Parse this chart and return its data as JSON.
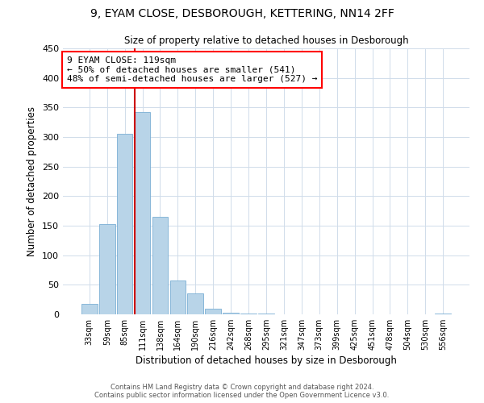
{
  "title": "9, EYAM CLOSE, DESBOROUGH, KETTERING, NN14 2FF",
  "subtitle": "Size of property relative to detached houses in Desborough",
  "xlabel": "Distribution of detached houses by size in Desborough",
  "ylabel": "Number of detached properties",
  "bar_labels": [
    "33sqm",
    "59sqm",
    "85sqm",
    "111sqm",
    "138sqm",
    "164sqm",
    "190sqm",
    "216sqm",
    "242sqm",
    "268sqm",
    "295sqm",
    "321sqm",
    "347sqm",
    "373sqm",
    "399sqm",
    "425sqm",
    "451sqm",
    "478sqm",
    "504sqm",
    "530sqm",
    "556sqm"
  ],
  "bar_heights": [
    18,
    153,
    305,
    342,
    165,
    57,
    35,
    9,
    3,
    1,
    1,
    0,
    0,
    0,
    0,
    0,
    0,
    0,
    0,
    0,
    2
  ],
  "bar_color": "#b8d4e8",
  "bar_edgecolor": "#7bafd4",
  "vline_color": "#cc0000",
  "ylim": [
    0,
    450
  ],
  "yticks": [
    0,
    50,
    100,
    150,
    200,
    250,
    300,
    350,
    400,
    450
  ],
  "annotation_title": "9 EYAM CLOSE: 119sqm",
  "annotation_line1": "← 50% of detached houses are smaller (541)",
  "annotation_line2": "48% of semi-detached houses are larger (527) →",
  "footer1": "Contains HM Land Registry data © Crown copyright and database right 2024.",
  "footer2": "Contains public sector information licensed under the Open Government Licence v3.0.",
  "background_color": "#ffffff",
  "grid_color": "#d0dcea"
}
